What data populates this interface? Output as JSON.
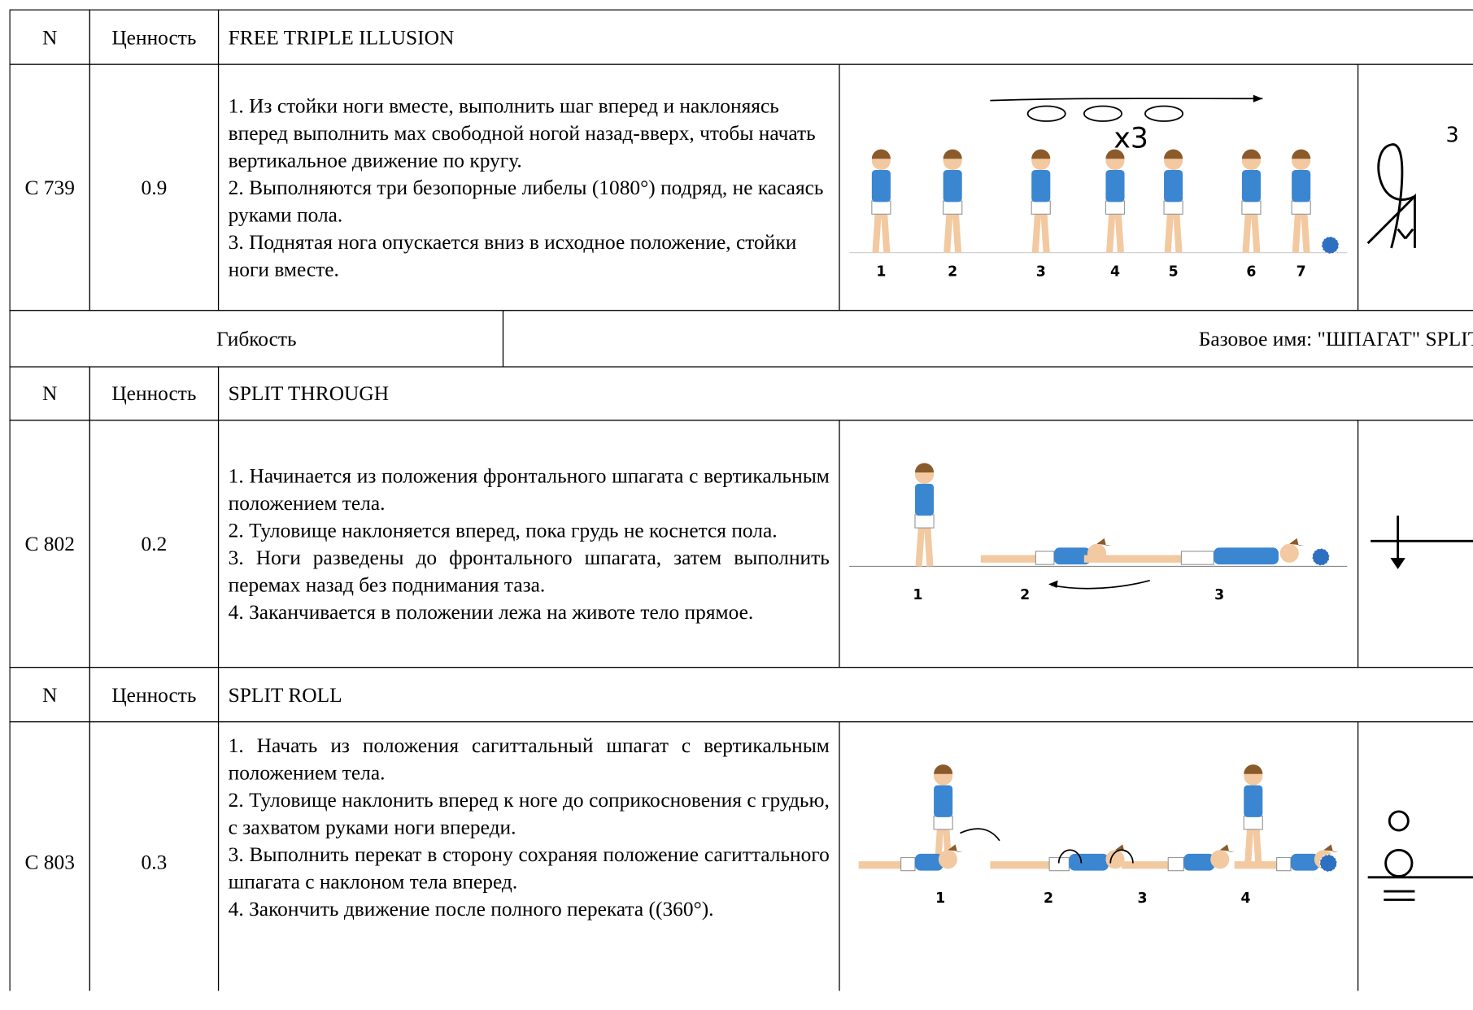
{
  "rows": [
    {
      "n": "N",
      "value": "Ценность",
      "name": "FREE TRIPLE ILLUSION"
    },
    {
      "code": "C 739",
      "value": "0.9",
      "description": [
        "1. Из стойки ноги вместе, выполнить шаг вперед и наклоняясь вперед выполнить мах свободной ногой назад-вверх, чтобы начать вертикальное движение по кругу.",
        "2. Выполняются три безопорные либелы (1080°) подряд, не касаясь руками пола.",
        "3. Поднятая нога опускается вниз в исходное положение, стойки ноги вместе."
      ],
      "figure_labels": [
        "x3",
        "1",
        "2",
        "3",
        "4",
        "5",
        "6",
        "7"
      ],
      "symbol_label": "3"
    },
    {
      "group": "Гибкость",
      "base_name": "Базовое имя: \"ШПАГАТ\" SPLIT"
    },
    {
      "n": "N",
      "value": "Ценность",
      "name": "SPLIT THROUGH"
    },
    {
      "code": "C 802",
      "value": "0.2",
      "description": [
        "1. Начинается из положения фронтального шпагата с вертикальным положением тела.",
        "2. Туловище наклоняется вперед, пока грудь не коснется пола.",
        "3. Ноги разведены до фронтального шпагата, затем выполнить перемах назад без поднимания таза.",
        "4. Заканчивается в положении лежа на животе тело прямое."
      ],
      "figure_labels": [
        "1",
        "2",
        "3"
      ]
    },
    {
      "n": "N",
      "value": "Ценность",
      "name": "SPLIT ROLL"
    },
    {
      "code": "C 803",
      "value": "0.3",
      "description": [
        "1. Начать из положения сагиттальный шпагат с вертикальным положением тела.",
        "2. Туловище наклонить вперед к ноге до соприкосновения с грудью, с захватом руками ноги впереди.",
        "3. Выполнить перекат в сторону сохраняя положение сагиттального шпагата с наклоном тела вперед.",
        "4. Закончить движение после полного переката ((360°)."
      ],
      "figure_labels": [
        "1",
        "2",
        "3",
        "4"
      ]
    }
  ]
}
